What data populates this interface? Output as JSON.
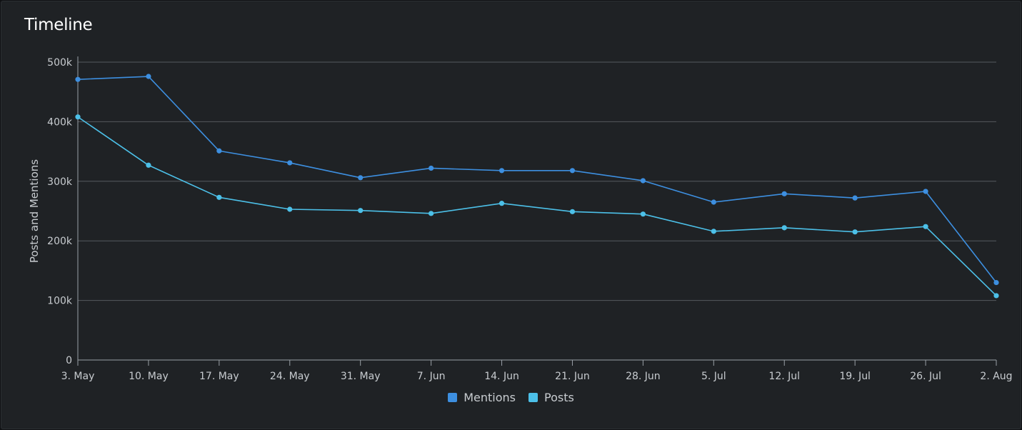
{
  "panel": {
    "title": "Timeline"
  },
  "colors": {
    "mentions": "#3d8fe0",
    "posts": "#4cc0e8",
    "grid": "#55595e",
    "axis": "#9aa0a6"
  },
  "chart_data": {
    "type": "line",
    "title": "Timeline",
    "xlabel": "",
    "ylabel": "Posts and Mentions",
    "categories": [
      "3. May",
      "10. May",
      "17. May",
      "24. May",
      "31. May",
      "7. Jun",
      "14. Jun",
      "21. Jun",
      "28. Jun",
      "5. Jul",
      "12. Jul",
      "19. Jul",
      "26. Jul",
      "2. Aug"
    ],
    "ylim": [
      0,
      500000
    ],
    "yticks": [
      0,
      100000,
      200000,
      300000,
      400000,
      500000
    ],
    "ytick_labels": [
      "0",
      "100k",
      "200k",
      "300k",
      "400k",
      "500k"
    ],
    "grid": true,
    "legend": "bottom-center",
    "series": [
      {
        "name": "Mentions",
        "color": "#3d8fe0",
        "values": [
          471000,
          476000,
          351000,
          331000,
          306000,
          322000,
          318000,
          318000,
          301000,
          265000,
          279000,
          272000,
          283000,
          130000
        ]
      },
      {
        "name": "Posts",
        "color": "#4cc0e8",
        "values": [
          408000,
          327000,
          273000,
          253000,
          251000,
          246000,
          263000,
          249000,
          245000,
          216000,
          222000,
          215000,
          224000,
          108000
        ]
      }
    ]
  }
}
